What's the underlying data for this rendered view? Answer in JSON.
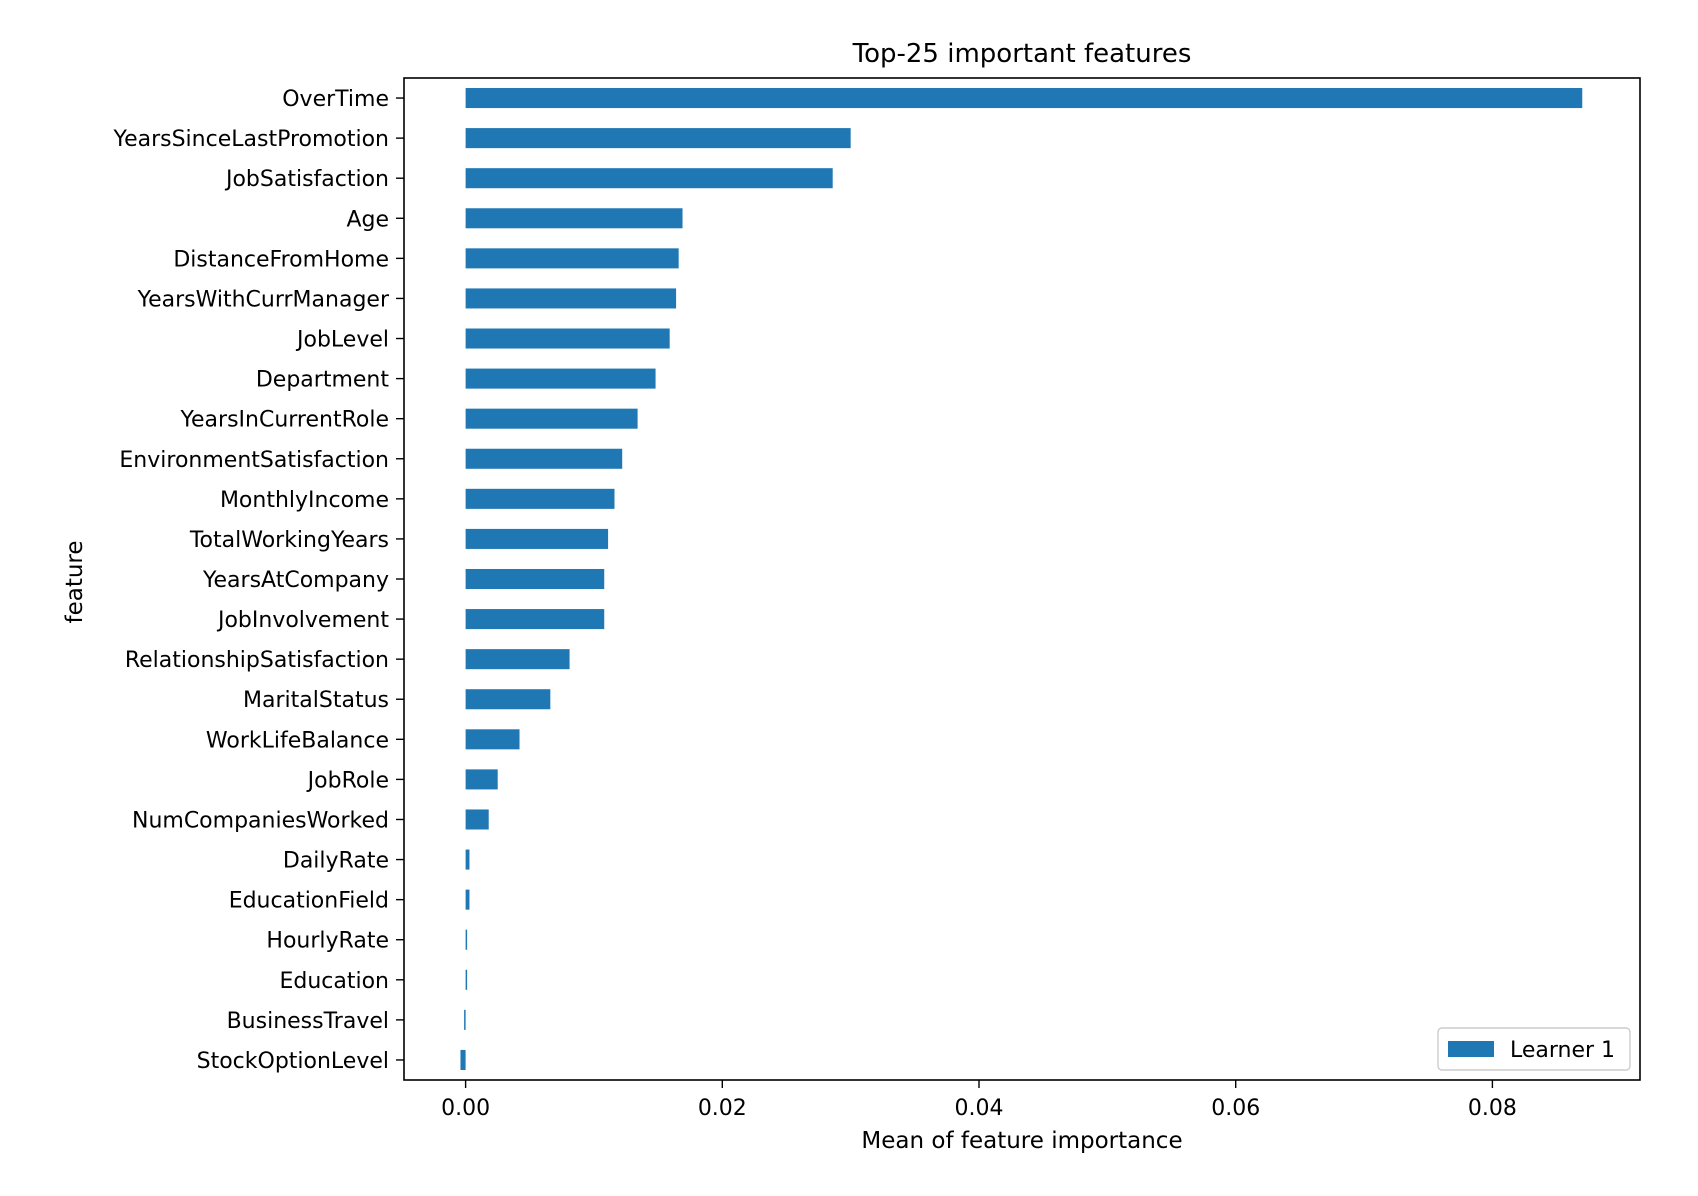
{
  "chart_data": {
    "type": "bar",
    "orientation": "horizontal",
    "title": "Top-25 important features",
    "xlabel": "Mean of feature importance",
    "ylabel": "feature",
    "xlim": [
      -0.0048,
      0.0915
    ],
    "xticks": [
      0.0,
      0.02,
      0.04,
      0.06,
      0.08
    ],
    "xtick_labels": [
      "0.00",
      "0.02",
      "0.04",
      "0.06",
      "0.08"
    ],
    "grid": false,
    "legend_position": "lower-right",
    "categories": [
      "OverTime",
      "YearsSinceLastPromotion",
      "JobSatisfaction",
      "Age",
      "DistanceFromHome",
      "YearsWithCurrManager",
      "JobLevel",
      "Department",
      "YearsInCurrentRole",
      "EnvironmentSatisfaction",
      "MonthlyIncome",
      "TotalWorkingYears",
      "YearsAtCompany",
      "JobInvolvement",
      "RelationshipSatisfaction",
      "MaritalStatus",
      "WorkLifeBalance",
      "JobRole",
      "NumCompaniesWorked",
      "DailyRate",
      "EducationField",
      "HourlyRate",
      "Education",
      "BusinessTravel",
      "StockOptionLevel"
    ],
    "series": [
      {
        "name": "Learner 1",
        "color": "#1f77b4",
        "values": [
          0.087,
          0.03,
          0.0286,
          0.0169,
          0.0166,
          0.0164,
          0.0159,
          0.0148,
          0.0134,
          0.0122,
          0.0116,
          0.0111,
          0.0108,
          0.0108,
          0.0081,
          0.0066,
          0.0042,
          0.0025,
          0.0018,
          0.0003,
          0.0003,
          0.0001,
          0.0001,
          -0.0001,
          -0.0004
        ]
      }
    ]
  }
}
